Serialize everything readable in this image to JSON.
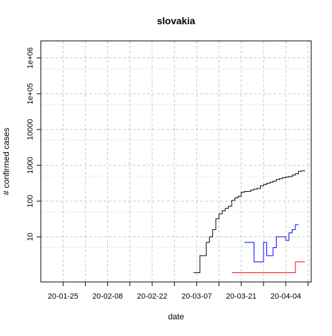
{
  "chart_data": {
    "type": "line",
    "title": "slovakia",
    "xlabel": "date",
    "ylabel": "# confirmed cases",
    "x_scale": "date",
    "y_scale": "log",
    "grid": true,
    "xlim": [
      "2020-01-18",
      "2020-04-12"
    ],
    "ylim": [
      0.55,
      3000000
    ],
    "x_ticks": [
      {
        "date": "2020-01-25",
        "label": "20-01-25"
      },
      {
        "date": "2020-02-08",
        "label": "20-02-08"
      },
      {
        "date": "2020-02-22",
        "label": "20-02-22"
      },
      {
        "date": "2020-03-07",
        "label": "20-03-07"
      },
      {
        "date": "2020-03-21",
        "label": "20-03-21"
      },
      {
        "date": "2020-04-04",
        "label": "20-04-04"
      }
    ],
    "x_minor_ticks": [
      "2020-02-01",
      "2020-02-15",
      "2020-02-29",
      "2020-03-14",
      "2020-03-28",
      "2020-04-11"
    ],
    "y_ticks": [
      {
        "value": 10,
        "label": "10"
      },
      {
        "value": 100,
        "label": "100"
      },
      {
        "value": 1000,
        "label": "1000"
      },
      {
        "value": 10000,
        "label": "10000"
      },
      {
        "value": 100000,
        "label": "1e+05"
      },
      {
        "value": 1000000,
        "label": "1e+06"
      }
    ],
    "y_minor_grid": [
      5,
      50,
      500,
      5000,
      50000,
      500000
    ],
    "series": [
      {
        "color": "#000000",
        "points": [
          [
            "2020-03-06",
            1
          ],
          [
            "2020-03-07",
            1
          ],
          [
            "2020-03-08",
            3
          ],
          [
            "2020-03-09",
            3
          ],
          [
            "2020-03-10",
            7
          ],
          [
            "2020-03-11",
            10
          ],
          [
            "2020-03-12",
            16
          ],
          [
            "2020-03-13",
            32
          ],
          [
            "2020-03-14",
            44
          ],
          [
            "2020-03-15",
            54
          ],
          [
            "2020-03-16",
            63
          ],
          [
            "2020-03-17",
            72
          ],
          [
            "2020-03-18",
            105
          ],
          [
            "2020-03-19",
            123
          ],
          [
            "2020-03-20",
            137
          ],
          [
            "2020-03-21",
            178
          ],
          [
            "2020-03-22",
            185
          ],
          [
            "2020-03-23",
            186
          ],
          [
            "2020-03-24",
            204
          ],
          [
            "2020-03-25",
            216
          ],
          [
            "2020-03-26",
            226
          ],
          [
            "2020-03-27",
            269
          ],
          [
            "2020-03-28",
            292
          ],
          [
            "2020-03-29",
            314
          ],
          [
            "2020-03-30",
            336
          ],
          [
            "2020-03-31",
            363
          ],
          [
            "2020-04-01",
            400
          ],
          [
            "2020-04-02",
            426
          ],
          [
            "2020-04-03",
            450
          ],
          [
            "2020-04-04",
            471
          ],
          [
            "2020-04-05",
            485
          ],
          [
            "2020-04-06",
            534
          ],
          [
            "2020-04-07",
            581
          ],
          [
            "2020-04-08",
            682
          ],
          [
            "2020-04-09",
            701
          ],
          [
            "2020-04-10",
            715
          ]
        ]
      },
      {
        "color": "#0000ff",
        "points": [
          [
            "2020-03-22",
            7
          ],
          [
            "2020-03-23",
            7
          ],
          [
            "2020-03-24",
            7
          ],
          [
            "2020-03-25",
            2
          ],
          [
            "2020-03-26",
            2
          ],
          [
            "2020-03-27",
            2
          ],
          [
            "2020-03-28",
            7
          ],
          [
            "2020-03-29",
            3
          ],
          [
            "2020-03-30",
            3
          ],
          [
            "2020-03-31",
            5
          ],
          [
            "2020-04-01",
            10
          ],
          [
            "2020-04-02",
            10
          ],
          [
            "2020-04-03",
            10
          ],
          [
            "2020-04-04",
            8
          ],
          [
            "2020-04-05",
            13
          ],
          [
            "2020-04-06",
            16
          ],
          [
            "2020-04-07",
            22
          ],
          [
            "2020-04-08",
            22
          ]
        ]
      },
      {
        "color": "#ff0000",
        "points": [
          [
            "2020-03-18",
            1
          ],
          [
            "2020-03-19",
            1
          ],
          [
            "2020-03-20",
            1
          ],
          [
            "2020-04-03",
            1
          ],
          [
            "2020-04-04",
            1
          ],
          [
            "2020-04-05",
            1
          ],
          [
            "2020-04-06",
            1
          ],
          [
            "2020-04-07",
            2
          ],
          [
            "2020-04-08",
            2
          ],
          [
            "2020-04-09",
            2
          ],
          [
            "2020-04-10",
            2
          ]
        ]
      }
    ]
  }
}
